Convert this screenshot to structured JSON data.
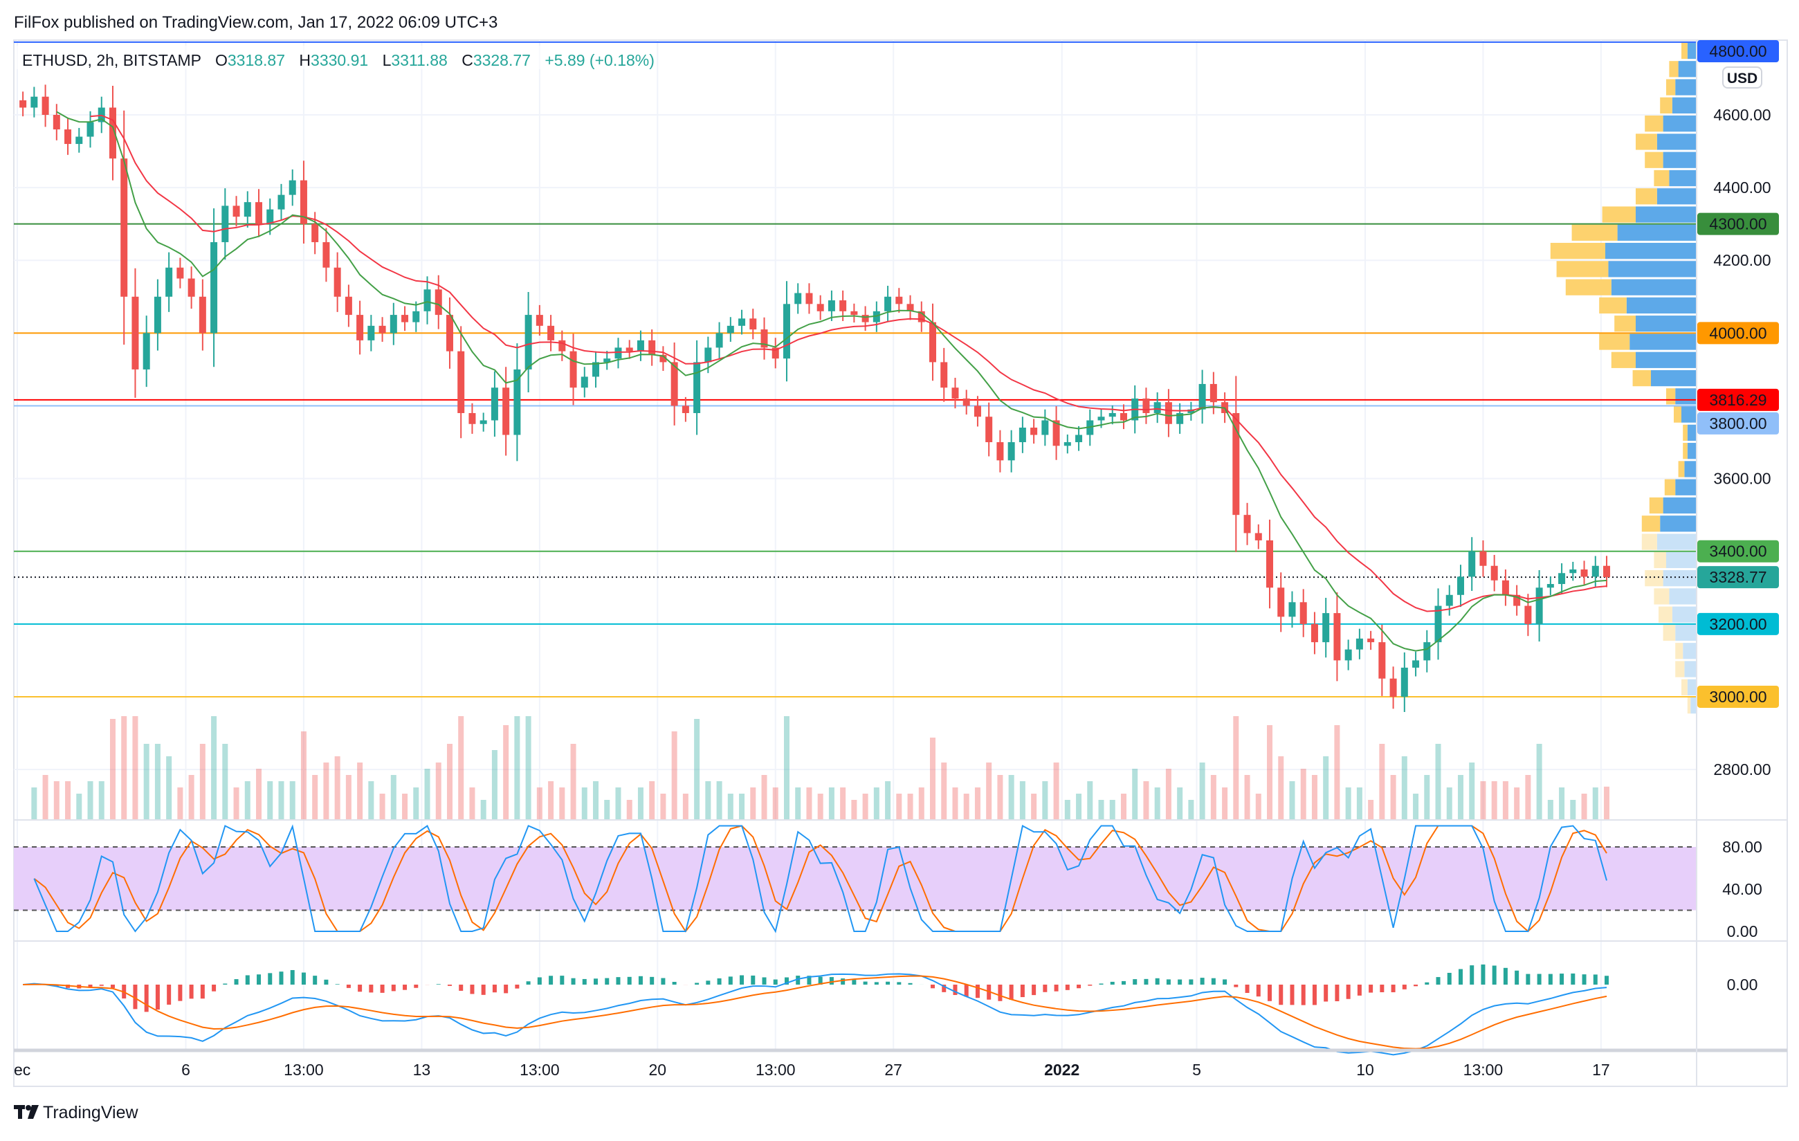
{
  "header": {
    "published": "FilFox published on TradingView.com, Jan 17, 2022 06:09 UTC+3"
  },
  "legend": {
    "symbol": "ETHUSD, 2h, BITSTAMP",
    "o_label": "O",
    "o_value": "3318.87",
    "h_label": "H",
    "h_value": "3330.91",
    "l_label": "L",
    "l_value": "3311.88",
    "c_label": "C",
    "c_value": "3328.77",
    "change": "+5.89 (+0.18%)"
  },
  "currency_badge": "USD",
  "branding": "TradingView",
  "colors": {
    "up": "#26a69a",
    "down": "#ef5350",
    "ema_fast": "#f23645",
    "ema_slow": "#43a047",
    "stoch_k": "#2196f3",
    "stoch_d": "#ff6d00",
    "stoch_band": "#e7cffa"
  },
  "chart_data": {
    "type": "candlestick",
    "symbol": "ETHUSD",
    "interval": "2h",
    "x_start": "Dec 1 2021",
    "samples_per_day": 3,
    "closes": [
      4620,
      4650,
      4600,
      4560,
      4520,
      4540,
      4580,
      4620,
      4480,
      4100,
      3900,
      4000,
      4100,
      4180,
      4150,
      4100,
      4000,
      4250,
      4350,
      4320,
      4360,
      4300,
      4340,
      4380,
      4420,
      4300,
      4250,
      4180,
      4100,
      4050,
      3980,
      4020,
      4000,
      4050,
      4030,
      4060,
      4120,
      4050,
      3950,
      3780,
      3750,
      3760,
      3850,
      3720,
      3900,
      4050,
      4020,
      3980,
      3950,
      3850,
      3880,
      3920,
      3930,
      3960,
      3950,
      3980,
      3940,
      3920,
      3800,
      3780,
      3920,
      3960,
      4000,
      4020,
      4040,
      4010,
      3960,
      3930,
      4080,
      4110,
      4080,
      4060,
      4090,
      4060,
      4050,
      4030,
      4060,
      4100,
      4080,
      4060,
      4030,
      3920,
      3850,
      3820,
      3800,
      3770,
      3700,
      3650,
      3700,
      3740,
      3720,
      3760,
      3690,
      3700,
      3720,
      3760,
      3770,
      3780,
      3760,
      3820,
      3780,
      3810,
      3750,
      3780,
      3790,
      3860,
      3810,
      3780,
      3500,
      3450,
      3430,
      3300,
      3220,
      3260,
      3200,
      3150,
      3230,
      3100,
      3130,
      3160,
      3150,
      3050,
      3000,
      3080,
      3100,
      3150,
      3250,
      3280,
      3330,
      3400,
      3360,
      3320,
      3280,
      3250,
      3200,
      3300,
      3310,
      3340,
      3350,
      3330,
      3360,
      3328.77
    ],
    "ylim": [
      2700,
      4800
    ],
    "y_ticks": [
      4600,
      4400,
      4200,
      3600,
      2800
    ],
    "y_tick_labels": [
      "4600.00",
      "4400.00",
      "4200.00",
      "3600.00",
      "2800.00"
    ],
    "x_ticks": [
      {
        "day": 0,
        "label": "ec",
        "bold": false
      },
      {
        "day": 5,
        "label": "6",
        "bold": false
      },
      {
        "day": 8.5,
        "label": "13:00",
        "bold": false
      },
      {
        "day": 12,
        "label": "13",
        "bold": false
      },
      {
        "day": 15.5,
        "label": "13:00",
        "bold": false
      },
      {
        "day": 19,
        "label": "20",
        "bold": false
      },
      {
        "day": 22.5,
        "label": "13:00",
        "bold": false
      },
      {
        "day": 26,
        "label": "27",
        "bold": false
      },
      {
        "day": 31,
        "label": "2022",
        "bold": true
      },
      {
        "day": 35,
        "label": "5",
        "bold": false
      },
      {
        "day": 40,
        "label": "10",
        "bold": false
      },
      {
        "day": 43.5,
        "label": "13:00",
        "bold": false
      },
      {
        "day": 47,
        "label": "17",
        "bold": false
      }
    ],
    "levels": [
      {
        "price": 4800,
        "label": "4800.00",
        "color": "#2962ff",
        "text": "#ffffff",
        "style": "solid"
      },
      {
        "price": 4300,
        "label": "4300.00",
        "color": "#388e3c",
        "text": "#ffffff",
        "style": "solid"
      },
      {
        "price": 4000,
        "label": "4000.00",
        "color": "#ff9800",
        "text": "#131722",
        "style": "solid"
      },
      {
        "price": 3816.29,
        "label": "3816.29",
        "color": "#ff0000",
        "text": "#ffffff",
        "style": "solid"
      },
      {
        "price": 3800,
        "label": "3800.00",
        "color": "#90bff9",
        "text": "#131722",
        "style": "solid"
      },
      {
        "price": 3400,
        "label": "3400.00",
        "color": "#4caf50",
        "text": "#ffffff",
        "style": "solid"
      },
      {
        "price": 3328.77,
        "label": "3328.77",
        "color": "#26a69a",
        "text": "#ffffff",
        "style": "dotted"
      },
      {
        "price": 3200,
        "label": "3200.00",
        "color": "#00bcd4",
        "text": "#131722",
        "style": "solid"
      },
      {
        "price": 3000,
        "label": "3000.00",
        "color": "#fbc02d",
        "text": "#131722",
        "style": "solid"
      }
    ],
    "volume_profile": {
      "bin_start": 2950,
      "bin_step": 50,
      "up": [
        2,
        4,
        6,
        5,
        8,
        9,
        10,
        12,
        8,
        10,
        12,
        9,
        7,
        4,
        3,
        3,
        5,
        6,
        12,
        16,
        20,
        14,
        18,
        30,
        34,
        36,
        30,
        22,
        14,
        10,
        12,
        14,
        12,
        8,
        6,
        6,
        4
      ],
      "down": [
        4,
        6,
        8,
        9,
        14,
        16,
        18,
        22,
        20,
        26,
        24,
        22,
        14,
        8,
        6,
        6,
        10,
        14,
        30,
        40,
        44,
        40,
        46,
        56,
        58,
        60,
        52,
        40,
        26,
        18,
        22,
        26,
        22,
        16,
        14,
        12,
        6
      ]
    },
    "indicators": {
      "stoch_rsi": {
        "ticks": [
          80,
          40,
          0
        ],
        "tick_labels": [
          "80.00",
          "40.00",
          "0.00"
        ],
        "band": [
          20,
          80
        ]
      },
      "macd": {
        "ticks": [
          0
        ],
        "tick_labels": [
          "0.00"
        ]
      }
    }
  }
}
